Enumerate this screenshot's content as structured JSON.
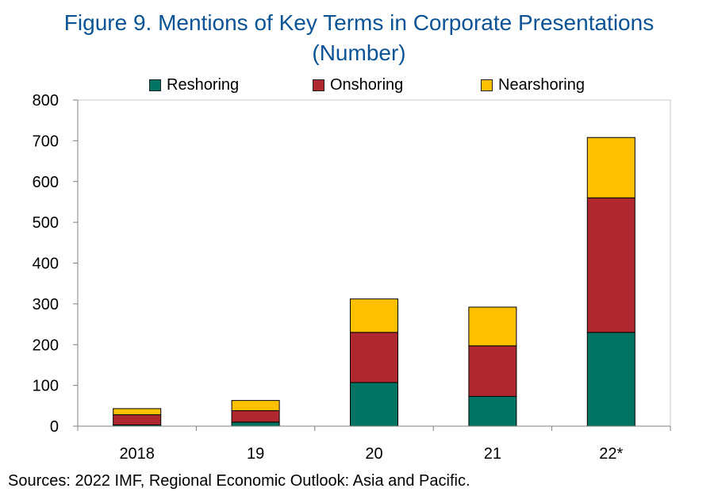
{
  "title_line1": "Figure 9. Mentions of Key Terms in Corporate Presentations",
  "title_line2": "(Number)",
  "source": "Sources: 2022 IMF, Regional Economic Outlook: Asia and Pacific.",
  "chart_data": {
    "type": "bar",
    "stacked": true,
    "categories": [
      "2018",
      "19",
      "20",
      "21",
      "22*"
    ],
    "series": [
      {
        "name": "Reshoring",
        "color": "#007462",
        "values": [
          3,
          10,
          107,
          73,
          230
        ]
      },
      {
        "name": "Onshoring",
        "color": "#b0282f",
        "values": [
          25,
          28,
          123,
          124,
          330
        ]
      },
      {
        "name": "Nearshoring",
        "color": "#ffc000",
        "values": [
          15,
          25,
          82,
          95,
          148
        ]
      }
    ],
    "ylim": [
      0,
      800
    ],
    "yticks": [
      0,
      100,
      200,
      300,
      400,
      500,
      600,
      700,
      800
    ],
    "legend_position": "top",
    "grid": false
  }
}
